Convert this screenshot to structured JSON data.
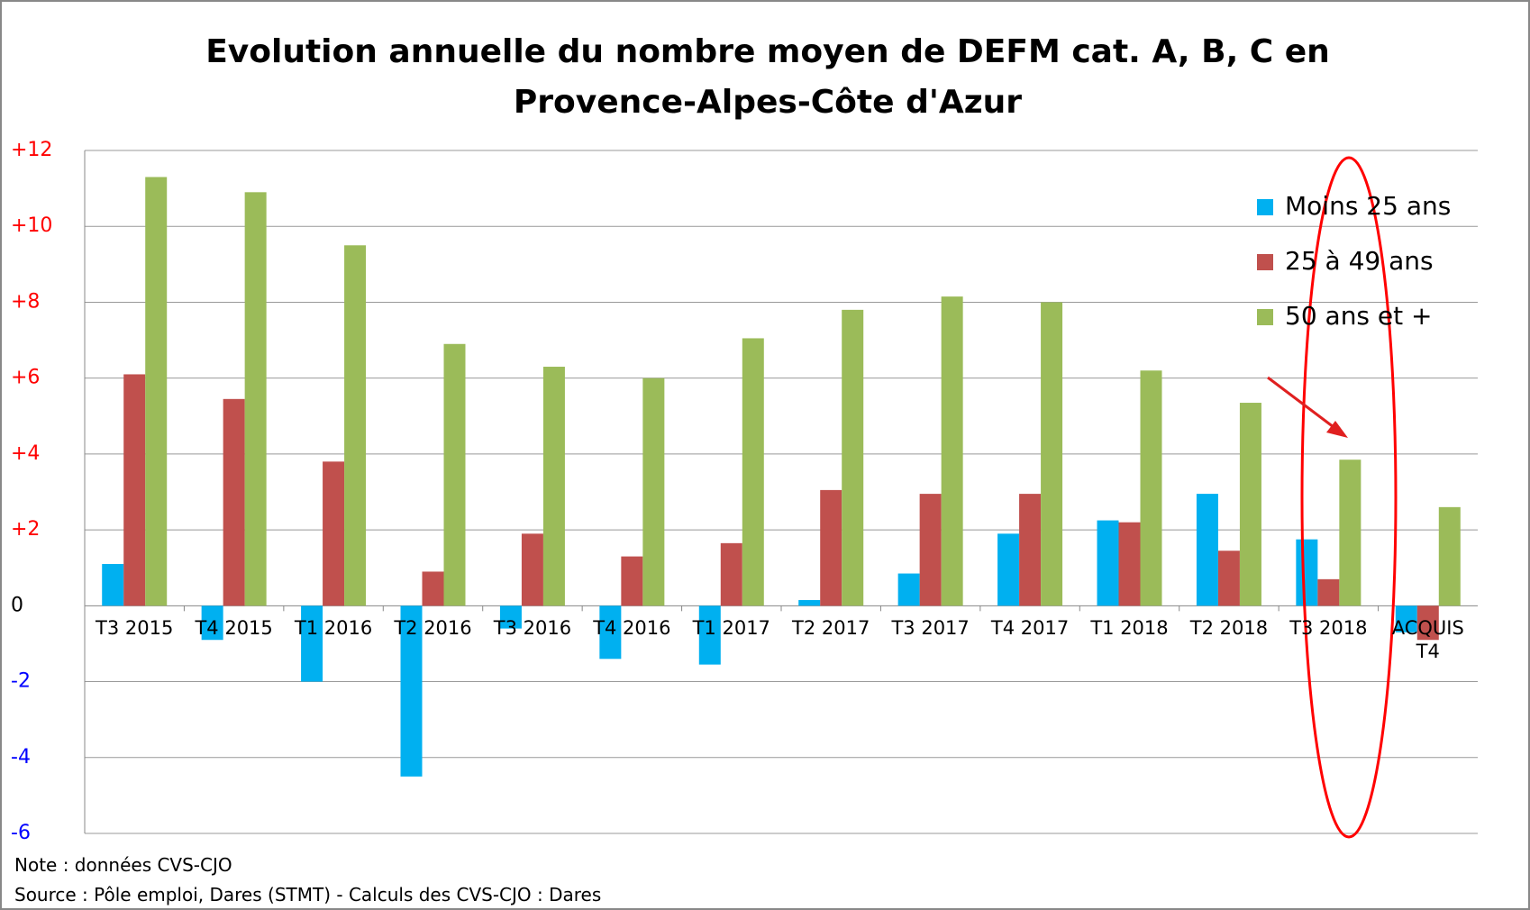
{
  "chart_data": {
    "type": "bar",
    "title": "Evolution annuelle du nombre moyen de DEFM cat. A, B, C en Provence-Alpes-Côte d'Azur",
    "categories": [
      "T3 2015",
      "T4 2015",
      "T1 2016",
      "T2 2016",
      "T3 2016",
      "T4 2016",
      "T1 2017",
      "T2 2017",
      "T3 2017",
      "T4 2017",
      "T1 2018",
      "T2 2018",
      "T3 2018",
      "ACQUIS T4"
    ],
    "series": [
      {
        "name": "Moins 25 ans",
        "color": "#00b0f0",
        "values": [
          1.1,
          -0.9,
          -2.0,
          -4.5,
          -0.6,
          -1.4,
          -1.55,
          0.15,
          0.85,
          1.9,
          2.25,
          2.95,
          1.75,
          -0.7
        ]
      },
      {
        "name": "25 à 49 ans",
        "color": "#c0504d",
        "values": [
          6.1,
          5.45,
          3.8,
          0.9,
          1.9,
          1.3,
          1.65,
          3.05,
          2.95,
          2.95,
          2.2,
          1.45,
          0.7,
          -0.9
        ]
      },
      {
        "name": "50 ans et +",
        "color": "#9bbb59",
        "values": [
          11.3,
          10.9,
          9.5,
          6.9,
          6.3,
          6.0,
          7.05,
          7.8,
          8.15,
          8.0,
          6.2,
          5.35,
          3.85,
          2.6
        ]
      }
    ],
    "ylim": [
      -6,
      12
    ],
    "yticks": [
      -6,
      -4,
      -2,
      0,
      {
        "value": 2,
        "label": "+2"
      },
      {
        "value": 4,
        "label": "+4"
      },
      {
        "value": 6,
        "label": "+6"
      },
      {
        "value": 8,
        "label": "+8"
      },
      {
        "value": 10,
        "label": "+10"
      },
      {
        "value": 12,
        "label": "+12"
      }
    ],
    "grid": true,
    "legend": "top-right",
    "notes": [
      "Note : données CVS-CJO",
      "Source : Pôle emploi, Dares (STMT) - Calculs des CVS-CJO : Dares"
    ]
  }
}
